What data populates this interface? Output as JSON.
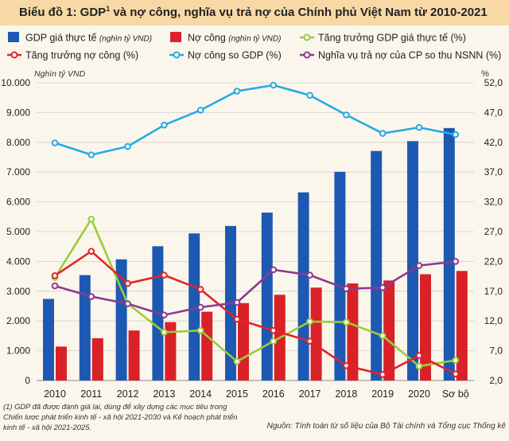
{
  "title": {
    "prefix": "Biểu đồ 1: GDP",
    "sup": "1",
    "suffix": " và nợ công, nghĩa vụ trả nợ của Chính phủ Việt Nam từ 2010-2021"
  },
  "colors": {
    "gdp_bar": "#1d59b2",
    "debt_bar": "#d92128",
    "gdp_growth": "#9bcc3a",
    "debt_growth": "#e0242b",
    "debt_gdp": "#27aae1",
    "debt_service": "#8a3b8f",
    "background": "#fbf6ec",
    "title_band": "#f8d9a6"
  },
  "chart_data": {
    "type": "bar",
    "categories": [
      "2010",
      "2011",
      "2012",
      "2013",
      "2014",
      "2015",
      "2016",
      "2017",
      "2018",
      "2019",
      "2020",
      "Sơ bộ 2021"
    ],
    "left_axis": {
      "unit": "Nghìn tỷ VND",
      "ylim": [
        0,
        10000
      ],
      "ticks": [
        "0",
        "1.000",
        "2.000",
        "3.000",
        "4.000",
        "5.000",
        "6.000",
        "7.000",
        "8.000",
        "9.000",
        "10.000"
      ]
    },
    "right_axis": {
      "unit": "%",
      "ylim": [
        2.0,
        52.0
      ],
      "ticks": [
        "2,0",
        "7,0",
        "12,0",
        "17,0",
        "22,0",
        "27,0",
        "32,0",
        "37,0",
        "42,0",
        "47,0",
        "52,0"
      ]
    },
    "series": [
      {
        "name": "GDP giá thực tế",
        "note": "(nghìn tỷ VND)",
        "kind": "bar",
        "axis": "left",
        "color": "#1d59b2",
        "values": [
          2740,
          3540,
          4070,
          4510,
          4940,
          5190,
          5640,
          6320,
          7010,
          7710,
          8040,
          8480
        ]
      },
      {
        "name": "Nợ công",
        "note": "(nghìn tỷ VND)",
        "kind": "bar",
        "axis": "left",
        "color": "#d92128",
        "values": [
          1140,
          1420,
          1680,
          1960,
          2310,
          2600,
          2880,
          3120,
          3260,
          3360,
          3570,
          3680
        ]
      },
      {
        "name": "Tăng trưởng GDP giá thực tế",
        "note": "(%)",
        "kind": "line",
        "axis": "right",
        "color": "#9bcc3a",
        "values": [
          19.3,
          29.1,
          14.9,
          10.1,
          10.4,
          5.2,
          8.6,
          11.9,
          11.8,
          9.5,
          4.4,
          5.4
        ]
      },
      {
        "name": "Tăng trưởng nợ công",
        "note": "(%)",
        "kind": "line",
        "axis": "right",
        "color": "#e0242b",
        "values": [
          19.6,
          23.7,
          18.3,
          19.7,
          17.3,
          12.3,
          10.4,
          8.6,
          4.5,
          3.0,
          6.2,
          3.1
        ]
      },
      {
        "name": "Nợ công so GDP",
        "note": "(%)",
        "kind": "line",
        "axis": "right",
        "color": "#27aae1",
        "values": [
          41.9,
          39.9,
          41.3,
          44.9,
          47.4,
          50.6,
          51.6,
          49.9,
          46.6,
          43.5,
          44.5,
          43.3
        ]
      },
      {
        "name": "Nghĩa vụ trả nợ của CP so thu NSNN",
        "note": "(%)",
        "kind": "line",
        "axis": "right",
        "color": "#8a3b8f",
        "values": [
          17.9,
          16.1,
          14.9,
          13.0,
          14.3,
          15.1,
          20.6,
          19.7,
          17.4,
          17.6,
          21.3,
          22.0
        ]
      }
    ],
    "grid": true,
    "legend": "top"
  },
  "footnote": "(1) GDP đã được đánh giá lại, dùng để xây dựng các mục tiêu trong Chiến lược phát triển kinh tế - xã hội 2021-2030 và Kế hoạch phát triển kinh tế - xã hội 2021-2025.",
  "source": "Nguồn: Tính toán từ số liệu của Bộ Tài chính và Tổng cục Thống kê"
}
